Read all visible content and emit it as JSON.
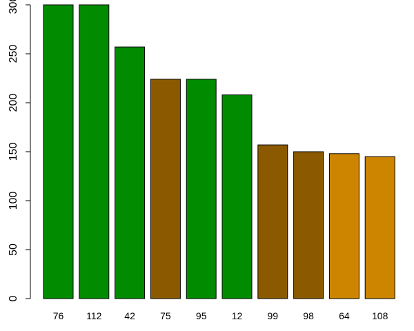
{
  "chart_data": {
    "type": "bar",
    "categories": [
      "76",
      "112",
      "42",
      "75",
      "95",
      "12",
      "99",
      "98",
      "64",
      "108"
    ],
    "values": [
      300,
      300,
      257,
      224,
      224,
      208,
      157,
      150,
      148,
      145
    ],
    "bar_colors": [
      "#008b00",
      "#008b00",
      "#008b00",
      "#8b5a00",
      "#008b00",
      "#008b00",
      "#8b5a00",
      "#8b5a00",
      "#cd8500",
      "#cd8500"
    ],
    "ylim": [
      0,
      300
    ],
    "yticks": [
      0,
      50,
      100,
      150,
      200,
      250,
      300
    ],
    "title": "",
    "xlabel": "",
    "ylabel": "",
    "grid": false,
    "legend": "none"
  },
  "colors": {
    "green": "#008b00",
    "brown": "#8b5a00",
    "orange": "#cd8500",
    "bar_border": "#000000",
    "background": "#ffffff"
  }
}
